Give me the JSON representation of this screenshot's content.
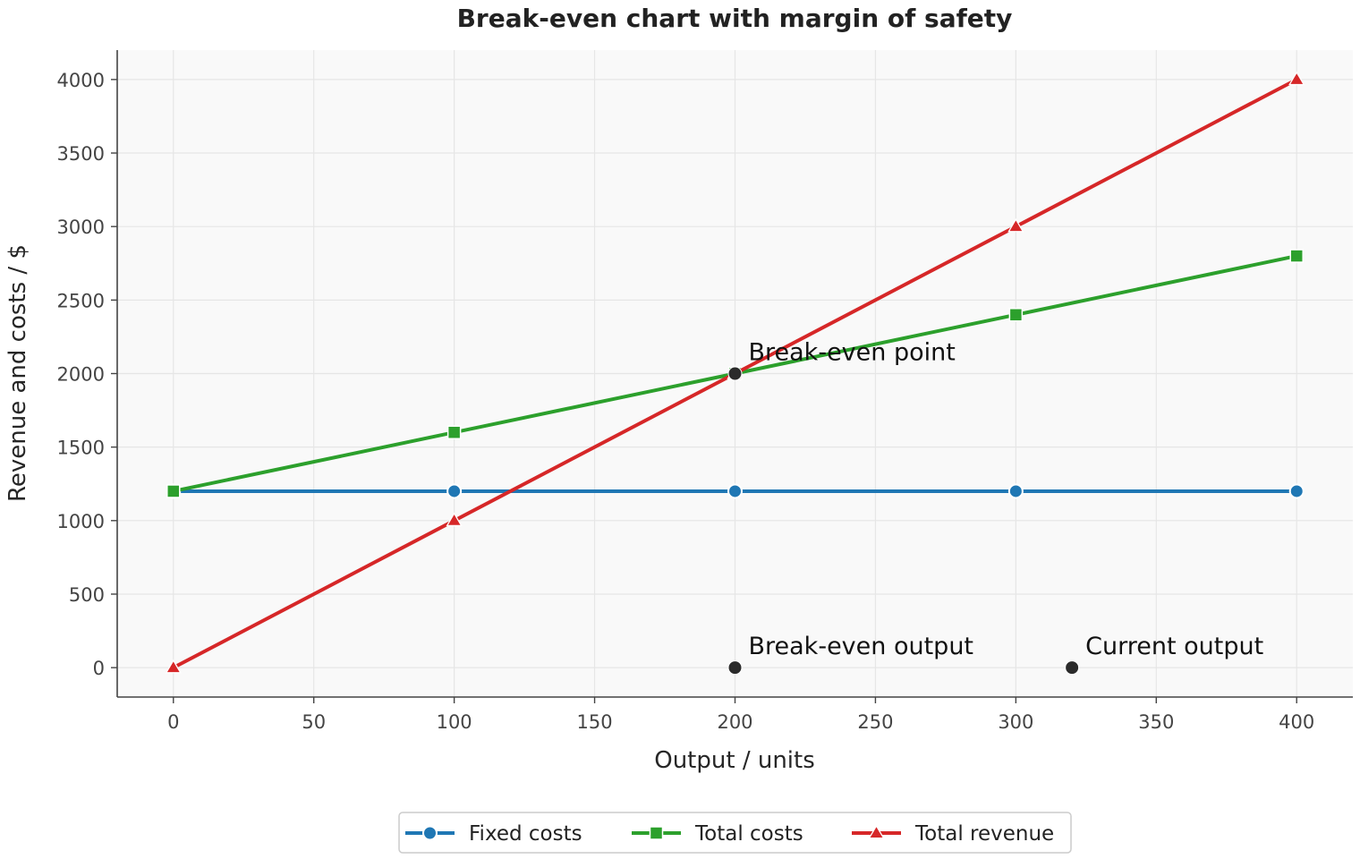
{
  "chart_data": {
    "type": "line",
    "title": "Break-even chart with margin of safety",
    "xlabel": "Output / units",
    "ylabel": "Revenue and costs / $",
    "xlim": [
      -20,
      420
    ],
    "ylim": [
      -200,
      4200
    ],
    "xticks": [
      0,
      50,
      100,
      150,
      200,
      250,
      300,
      350,
      400
    ],
    "yticks": [
      0,
      500,
      1000,
      1500,
      2000,
      2500,
      3000,
      3500,
      4000
    ],
    "grid": true,
    "legend_position": "bottom-center",
    "x": [
      0,
      100,
      200,
      300,
      400
    ],
    "series": [
      {
        "name": "Fixed costs",
        "values": [
          1200,
          1200,
          1200,
          1200,
          1200
        ],
        "color": "#1f77b4",
        "marker": "circle"
      },
      {
        "name": "Total costs",
        "values": [
          1200,
          1600,
          2000,
          2400,
          2800
        ],
        "color": "#2ca02c",
        "marker": "square"
      },
      {
        "name": "Total revenue",
        "values": [
          0,
          1000,
          2000,
          3000,
          4000
        ],
        "color": "#d62728",
        "marker": "triangle"
      }
    ],
    "annotations": [
      {
        "label": "Break-even point",
        "x": 200,
        "y": 2000
      },
      {
        "label": "Break-even output",
        "x": 200,
        "y": 0
      },
      {
        "label": "Current output",
        "x": 320,
        "y": 0
      }
    ]
  }
}
